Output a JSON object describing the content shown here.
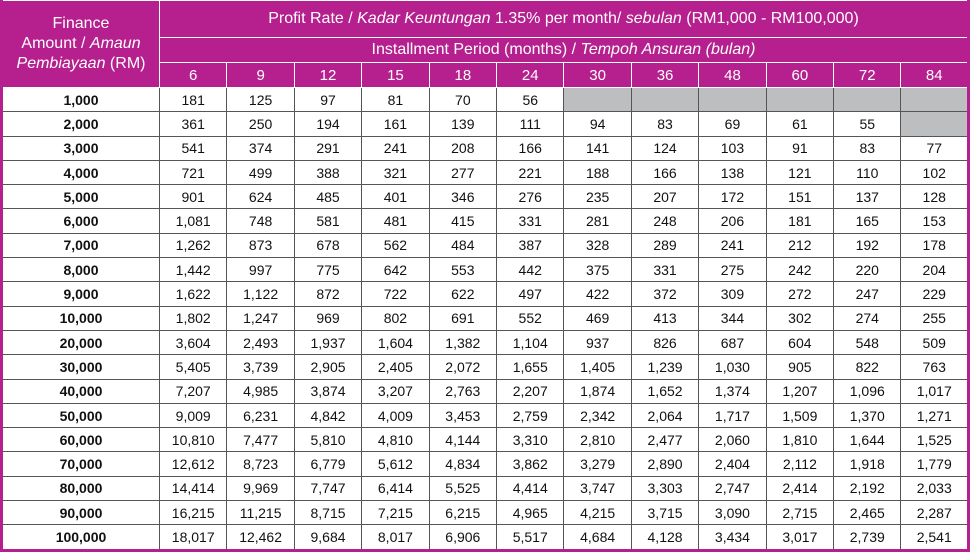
{
  "header": {
    "amount_label": [
      "Finance",
      "Amount / ",
      "Amaun",
      "Pembiayaan",
      " (RM)"
    ],
    "rate_title": [
      "Profit Rate / ",
      "Kadar Keuntungan",
      " 1.35% per month/ ",
      "sebulan",
      " (RM1,000 - RM100,000)"
    ],
    "period_title": [
      "Installment Period (months) / ",
      "Tempoh Ansuran (bulan)"
    ],
    "periods": [
      "6",
      "9",
      "12",
      "15",
      "18",
      "24",
      "30",
      "36",
      "48",
      "60",
      "72",
      "84"
    ]
  },
  "colors": {
    "header_bg": "#b5208e",
    "unavailable": "#bcbec0"
  },
  "rows": [
    {
      "amount": "1,000",
      "values": [
        "181",
        "125",
        "97",
        "81",
        "70",
        "56",
        null,
        null,
        null,
        null,
        null,
        null
      ]
    },
    {
      "amount": "2,000",
      "values": [
        "361",
        "250",
        "194",
        "161",
        "139",
        "111",
        "94",
        "83",
        "69",
        "61",
        "55",
        null
      ]
    },
    {
      "amount": "3,000",
      "values": [
        "541",
        "374",
        "291",
        "241",
        "208",
        "166",
        "141",
        "124",
        "103",
        "91",
        "83",
        "77"
      ]
    },
    {
      "amount": "4,000",
      "values": [
        "721",
        "499",
        "388",
        "321",
        "277",
        "221",
        "188",
        "166",
        "138",
        "121",
        "110",
        "102"
      ]
    },
    {
      "amount": "5,000",
      "values": [
        "901",
        "624",
        "485",
        "401",
        "346",
        "276",
        "235",
        "207",
        "172",
        "151",
        "137",
        "128"
      ]
    },
    {
      "amount": "6,000",
      "values": [
        "1,081",
        "748",
        "581",
        "481",
        "415",
        "331",
        "281",
        "248",
        "206",
        "181",
        "165",
        "153"
      ]
    },
    {
      "amount": "7,000",
      "values": [
        "1,262",
        "873",
        "678",
        "562",
        "484",
        "387",
        "328",
        "289",
        "241",
        "212",
        "192",
        "178"
      ]
    },
    {
      "amount": "8,000",
      "values": [
        "1,442",
        "997",
        "775",
        "642",
        "553",
        "442",
        "375",
        "331",
        "275",
        "242",
        "220",
        "204"
      ]
    },
    {
      "amount": "9,000",
      "values": [
        "1,622",
        "1,122",
        "872",
        "722",
        "622",
        "497",
        "422",
        "372",
        "309",
        "272",
        "247",
        "229"
      ]
    },
    {
      "amount": "10,000",
      "values": [
        "1,802",
        "1,247",
        "969",
        "802",
        "691",
        "552",
        "469",
        "413",
        "344",
        "302",
        "274",
        "255"
      ]
    },
    {
      "amount": "20,000",
      "values": [
        "3,604",
        "2,493",
        "1,937",
        "1,604",
        "1,382",
        "1,104",
        "937",
        "826",
        "687",
        "604",
        "548",
        "509"
      ]
    },
    {
      "amount": "30,000",
      "values": [
        "5,405",
        "3,739",
        "2,905",
        "2,405",
        "2,072",
        "1,655",
        "1,405",
        "1,239",
        "1,030",
        "905",
        "822",
        "763"
      ]
    },
    {
      "amount": "40,000",
      "values": [
        "7,207",
        "4,985",
        "3,874",
        "3,207",
        "2,763",
        "2,207",
        "1,874",
        "1,652",
        "1,374",
        "1,207",
        "1,096",
        "1,017"
      ]
    },
    {
      "amount": "50,000",
      "values": [
        "9,009",
        "6,231",
        "4,842",
        "4,009",
        "3,453",
        "2,759",
        "2,342",
        "2,064",
        "1,717",
        "1,509",
        "1,370",
        "1,271"
      ]
    },
    {
      "amount": "60,000",
      "values": [
        "10,810",
        "7,477",
        "5,810",
        "4,810",
        "4,144",
        "3,310",
        "2,810",
        "2,477",
        "2,060",
        "1,810",
        "1,644",
        "1,525"
      ]
    },
    {
      "amount": "70,000",
      "values": [
        "12,612",
        "8,723",
        "6,779",
        "5,612",
        "4,834",
        "3,862",
        "3,279",
        "2,890",
        "2,404",
        "2,112",
        "1,918",
        "1,779"
      ]
    },
    {
      "amount": "80,000",
      "values": [
        "14,414",
        "9,969",
        "7,747",
        "6,414",
        "5,525",
        "4,414",
        "3,747",
        "3,303",
        "2,747",
        "2,414",
        "2,192",
        "2,033"
      ]
    },
    {
      "amount": "90,000",
      "values": [
        "16,215",
        "11,215",
        "8,715",
        "7,215",
        "6,215",
        "4,965",
        "4,215",
        "3,715",
        "3,090",
        "2,715",
        "2,465",
        "2,287"
      ]
    },
    {
      "amount": "100,000",
      "values": [
        "18,017",
        "12,462",
        "9,684",
        "8,017",
        "6,906",
        "5,517",
        "4,684",
        "4,128",
        "3,434",
        "3,017",
        "2,739",
        "2,541"
      ]
    }
  ]
}
